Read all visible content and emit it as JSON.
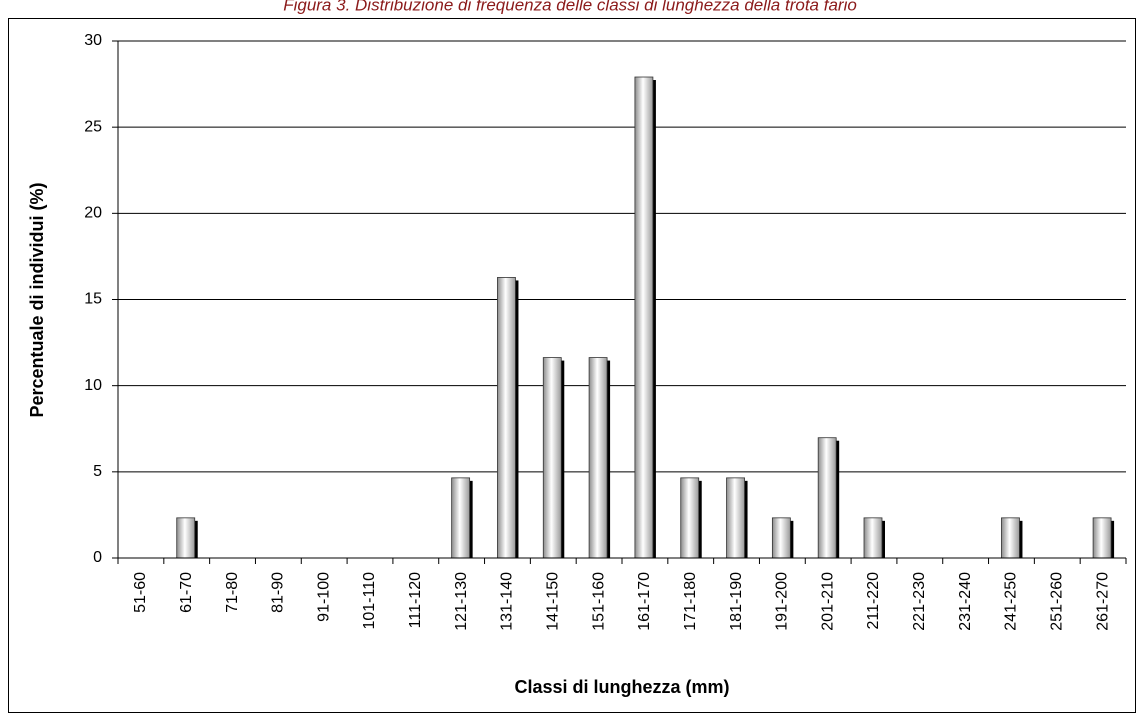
{
  "chart_data": {
    "type": "bar",
    "title": "Figura 3. Distribuzione di frequenza delle classi di lunghezza della trota fario",
    "x_label": "Classi di lunghezza (mm)",
    "y_label": "Percentuale di individui (%)",
    "categories": [
      "51-60",
      "61-70",
      "71-80",
      "81-90",
      "91-100",
      "101-110",
      "111-120",
      "121-130",
      "131-140",
      "141-150",
      "151-160",
      "161-170",
      "171-180",
      "181-190",
      "191-200",
      "201-210",
      "211-220",
      "221-230",
      "231-240",
      "241-250",
      "251-260",
      "261-270"
    ],
    "values": [
      0,
      2.33,
      0,
      0,
      0,
      0,
      0,
      4.65,
      16.28,
      11.63,
      11.63,
      27.91,
      4.65,
      4.65,
      2.33,
      6.98,
      2.33,
      0,
      0,
      2.33,
      0,
      2.33
    ],
    "color": "#c8c8c8",
    "ylim": [
      0,
      30
    ],
    "yticks": [
      0,
      5,
      10,
      15,
      20,
      25,
      30
    ],
    "grid": true
  }
}
